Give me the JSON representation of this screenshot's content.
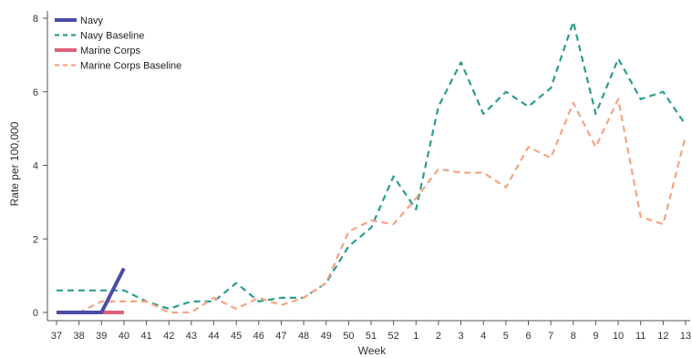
{
  "chart_data": {
    "type": "line",
    "x": [
      "37",
      "38",
      "39",
      "40",
      "41",
      "42",
      "43",
      "44",
      "45",
      "46",
      "47",
      "48",
      "49",
      "50",
      "51",
      "52",
      "1",
      "2",
      "3",
      "4",
      "5",
      "6",
      "7",
      "8",
      "9",
      "10",
      "11",
      "12",
      "13"
    ],
    "xlabel": "Week",
    "ylabel": "Rate per 100,000",
    "ylim": [
      0,
      8
    ],
    "yticks": [
      "0",
      "2",
      "4",
      "6",
      "8"
    ],
    "grid": false,
    "legend_position": "top-left",
    "series": [
      {
        "name": "Navy",
        "style": "solid",
        "color": "#4b4ba8",
        "values": [
          0,
          0,
          0,
          1.2,
          null,
          null,
          null,
          null,
          null,
          null,
          null,
          null,
          null,
          null,
          null,
          null,
          null,
          null,
          null,
          null,
          null,
          null,
          null,
          null,
          null,
          null,
          null,
          null,
          null
        ]
      },
      {
        "name": "Navy Baseline",
        "style": "dashed",
        "color": "#2a9d8f",
        "values": [
          0.6,
          0.6,
          0.6,
          0.6,
          0.3,
          0.1,
          0.3,
          0.3,
          0.8,
          0.3,
          0.4,
          0.4,
          0.8,
          1.8,
          2.3,
          3.7,
          2.8,
          5.6,
          6.8,
          5.4,
          6.0,
          5.6,
          6.1,
          7.9,
          5.4,
          6.9,
          5.8,
          6.0,
          5.1
        ]
      },
      {
        "name": "Marine Corps",
        "style": "solid",
        "color": "#e0607a",
        "values": [
          0,
          0,
          0,
          0,
          null,
          null,
          null,
          null,
          null,
          null,
          null,
          null,
          null,
          null,
          null,
          null,
          null,
          null,
          null,
          null,
          null,
          null,
          null,
          null,
          null,
          null,
          null,
          null,
          null
        ]
      },
      {
        "name": "Marine Corps Baseline",
        "style": "dashed",
        "color": "#f4a582",
        "values": [
          0,
          0,
          0.3,
          0.3,
          0.3,
          0,
          0,
          0.4,
          0.1,
          0.4,
          0.2,
          0.4,
          0.8,
          2.2,
          2.5,
          2.4,
          3.1,
          3.9,
          3.8,
          3.8,
          3.4,
          4.5,
          4.2,
          5.7,
          4.5,
          5.8,
          2.6,
          2.4,
          4.8
        ]
      }
    ]
  }
}
